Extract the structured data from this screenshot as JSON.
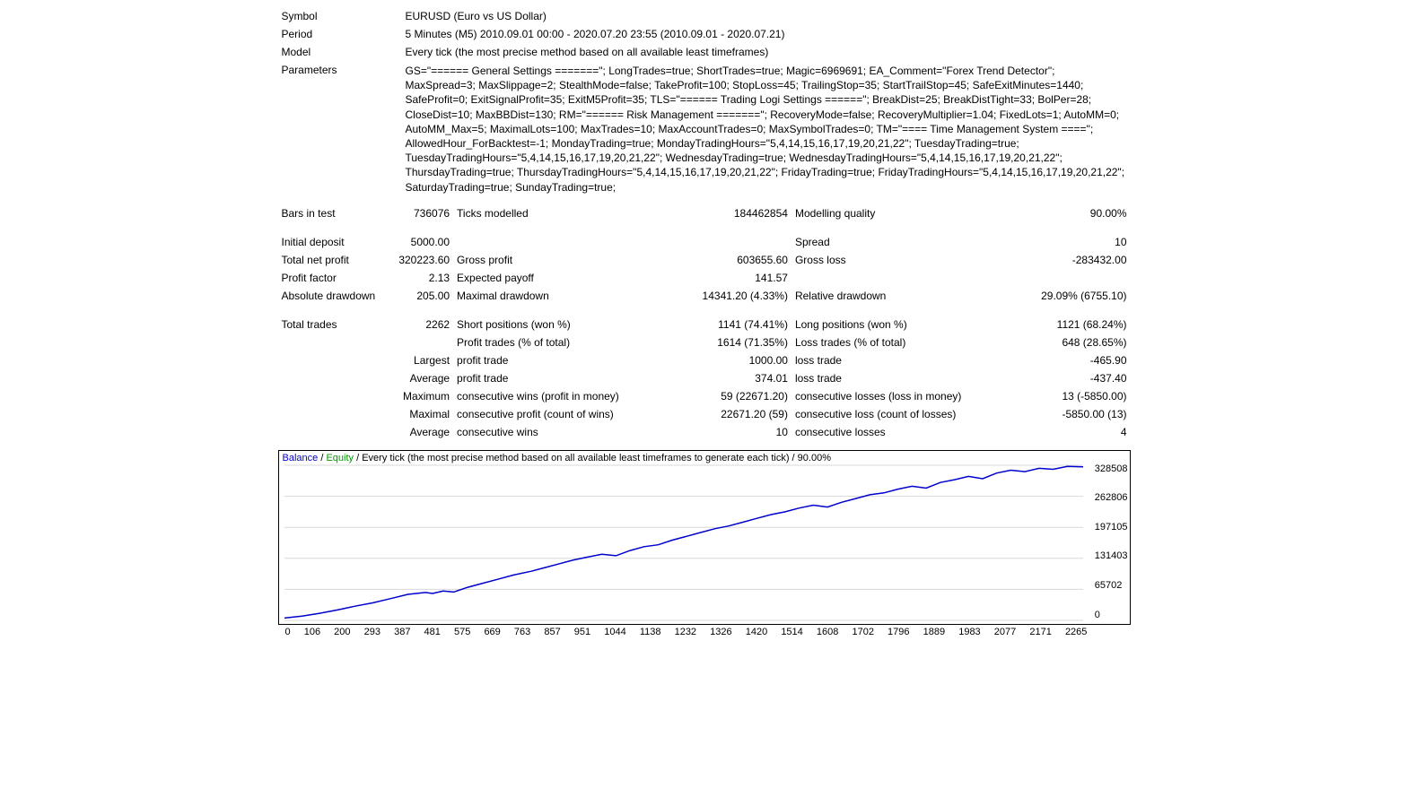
{
  "header": {
    "symbol_label": "Symbol",
    "symbol_value": "EURUSD (Euro vs US Dollar)",
    "period_label": "Period",
    "period_value": "5 Minutes (M5) 2010.09.01 00:00 - 2020.07.20 23:55 (2010.09.01 - 2020.07.21)",
    "model_label": "Model",
    "model_value": "Every tick (the most precise method based on all available least timeframes)",
    "parameters_label": "Parameters",
    "parameters_value": "GS=\"====== General Settings =======\"; LongTrades=true; ShortTrades=true; Magic=6969691; EA_Comment=\"Forex Trend Detector\"; MaxSpread=3; MaxSlippage=2; StealthMode=false; TakeProfit=100; StopLoss=45; TrailingStop=35; StartTrailStop=45; SafeExitMinutes=1440; SafeProfit=0; ExitSignalProfit=35; ExitM5Profit=35; TLS=\"====== Trading Logi Settings ======\"; BreakDist=25; BreakDistTight=33; BolPer=28; CloseDist=10; MaxBBDist=130; RM=\"====== Risk Management =======\"; RecoveryMode=false; RecoveryMultiplier=1.04; FixedLots=1; AutoMM=0; AutoMM_Max=5; MaximalLots=100; MaxTrades=10; MaxAccountTrades=0; MaxSymbolTrades=0; TM=\"==== Time Management System ====\"; AllowedHour_ForBacktest=-1; MondayTrading=true; MondayTradingHours=\"5,4,14,15,16,17,19,20,21,22\"; TuesdayTrading=true; TuesdayTradingHours=\"5,4,14,15,16,17,19,20,21,22\"; WednesdayTrading=true; WednesdayTradingHours=\"5,4,14,15,16,17,19,20,21,22\"; ThursdayTrading=true; ThursdayTradingHours=\"5,4,14,15,16,17,19,20,21,22\"; FridayTrading=true; FridayTradingHours=\"5,4,14,15,16,17,19,20,21,22\"; SaturdayTrading=true; SundayTrading=true;"
  },
  "stats": {
    "bars_in_test_label": "Bars in test",
    "bars_in_test_value": "736076",
    "ticks_modelled_label": "Ticks modelled",
    "ticks_modelled_value": "184462854",
    "modelling_quality_label": "Modelling quality",
    "modelling_quality_value": "90.00%",
    "initial_deposit_label": "Initial deposit",
    "initial_deposit_value": "5000.00",
    "spread_label": "Spread",
    "spread_value": "10",
    "total_net_profit_label": "Total net profit",
    "total_net_profit_value": "320223.60",
    "gross_profit_label": "Gross profit",
    "gross_profit_value": "603655.60",
    "gross_loss_label": "Gross loss",
    "gross_loss_value": "-283432.00",
    "profit_factor_label": "Profit factor",
    "profit_factor_value": "2.13",
    "expected_payoff_label": "Expected payoff",
    "expected_payoff_value": "141.57",
    "absolute_drawdown_label": "Absolute drawdown",
    "absolute_drawdown_value": "205.00",
    "maximal_drawdown_label": "Maximal drawdown",
    "maximal_drawdown_value": "14341.20 (4.33%)",
    "relative_drawdown_label": "Relative drawdown",
    "relative_drawdown_value": "29.09% (6755.10)",
    "total_trades_label": "Total trades",
    "total_trades_value": "2262",
    "short_positions_label": "Short positions (won %)",
    "short_positions_value": "1141 (74.41%)",
    "long_positions_label": "Long positions (won %)",
    "long_positions_value": "1121 (68.24%)",
    "profit_trades_label": "Profit trades (% of total)",
    "profit_trades_value": "1614 (71.35%)",
    "loss_trades_label": "Loss trades (% of total)",
    "loss_trades_value": "648 (28.65%)",
    "largest_label": "Largest",
    "largest_profit_trade_label": "profit trade",
    "largest_profit_trade_value": "1000.00",
    "largest_loss_trade_label": "loss trade",
    "largest_loss_trade_value": "-465.90",
    "average_label": "Average",
    "average_profit_trade_label": "profit trade",
    "average_profit_trade_value": "374.01",
    "average_loss_trade_label": "loss trade",
    "average_loss_trade_value": "-437.40",
    "maximum_label": "Maximum",
    "max_cons_wins_label": "consecutive wins (profit in money)",
    "max_cons_wins_value": "59 (22671.20)",
    "max_cons_losses_label": "consecutive losses (loss in money)",
    "max_cons_losses_value": "13 (-5850.00)",
    "maximal_label": "Maximal",
    "maximal_cons_profit_label": "consecutive profit (count of wins)",
    "maximal_cons_profit_value": "22671.20 (59)",
    "maximal_cons_loss_label": "consecutive loss (count of losses)",
    "maximal_cons_loss_value": "-5850.00 (13)",
    "avg2_label": "Average",
    "avg_cons_wins_label": "consecutive wins",
    "avg_cons_wins_value": "10",
    "avg_cons_losses_label": "consecutive losses",
    "avg_cons_losses_value": "4"
  },
  "chart": {
    "caption_balance": "Balance",
    "caption_equity": "Equity",
    "caption_rest": "Every tick (the most precise method based on all available least timeframes to generate each tick) / 90.00%",
    "balance_color": "#0000cc",
    "equity_color": "#009900",
    "grid_color": "#d8d8d8",
    "background_color": "#ffffff",
    "y_ticks": [
      "328508",
      "262806",
      "197105",
      "131403",
      "65702",
      "0"
    ],
    "x_ticks": [
      "0",
      "106",
      "200",
      "293",
      "387",
      "481",
      "575",
      "669",
      "763",
      "857",
      "951",
      "1044",
      "1138",
      "1232",
      "1326",
      "1420",
      "1514",
      "1608",
      "1702",
      "1796",
      "1889",
      "1983",
      "2077",
      "2171",
      "2265"
    ],
    "series": [
      {
        "x": 0,
        "y": 5000
      },
      {
        "x": 50,
        "y": 9000
      },
      {
        "x": 100,
        "y": 15000
      },
      {
        "x": 150,
        "y": 22000
      },
      {
        "x": 200,
        "y": 30000
      },
      {
        "x": 250,
        "y": 37000
      },
      {
        "x": 300,
        "y": 46000
      },
      {
        "x": 350,
        "y": 55000
      },
      {
        "x": 400,
        "y": 59000
      },
      {
        "x": 420,
        "y": 57000
      },
      {
        "x": 450,
        "y": 62000
      },
      {
        "x": 480,
        "y": 60000
      },
      {
        "x": 520,
        "y": 70000
      },
      {
        "x": 560,
        "y": 78000
      },
      {
        "x": 600,
        "y": 86000
      },
      {
        "x": 650,
        "y": 96000
      },
      {
        "x": 700,
        "y": 104000
      },
      {
        "x": 740,
        "y": 112000
      },
      {
        "x": 780,
        "y": 120000
      },
      {
        "x": 820,
        "y": 128000
      },
      {
        "x": 860,
        "y": 134000
      },
      {
        "x": 900,
        "y": 140000
      },
      {
        "x": 940,
        "y": 137000
      },
      {
        "x": 980,
        "y": 148000
      },
      {
        "x": 1020,
        "y": 156000
      },
      {
        "x": 1060,
        "y": 160000
      },
      {
        "x": 1100,
        "y": 170000
      },
      {
        "x": 1140,
        "y": 178000
      },
      {
        "x": 1180,
        "y": 186000
      },
      {
        "x": 1220,
        "y": 194000
      },
      {
        "x": 1260,
        "y": 200000
      },
      {
        "x": 1300,
        "y": 208000
      },
      {
        "x": 1340,
        "y": 216000
      },
      {
        "x": 1380,
        "y": 224000
      },
      {
        "x": 1420,
        "y": 230000
      },
      {
        "x": 1460,
        "y": 238000
      },
      {
        "x": 1500,
        "y": 244000
      },
      {
        "x": 1540,
        "y": 240000
      },
      {
        "x": 1580,
        "y": 250000
      },
      {
        "x": 1620,
        "y": 258000
      },
      {
        "x": 1660,
        "y": 266000
      },
      {
        "x": 1700,
        "y": 270000
      },
      {
        "x": 1740,
        "y": 278000
      },
      {
        "x": 1780,
        "y": 284000
      },
      {
        "x": 1820,
        "y": 280000
      },
      {
        "x": 1860,
        "y": 292000
      },
      {
        "x": 1900,
        "y": 298000
      },
      {
        "x": 1940,
        "y": 305000
      },
      {
        "x": 1980,
        "y": 300000
      },
      {
        "x": 2020,
        "y": 312000
      },
      {
        "x": 2060,
        "y": 318000
      },
      {
        "x": 2100,
        "y": 315000
      },
      {
        "x": 2140,
        "y": 322000
      },
      {
        "x": 2180,
        "y": 320000
      },
      {
        "x": 2220,
        "y": 326000
      },
      {
        "x": 2265,
        "y": 325000
      }
    ],
    "x_max": 2265,
    "y_max": 328508
  }
}
